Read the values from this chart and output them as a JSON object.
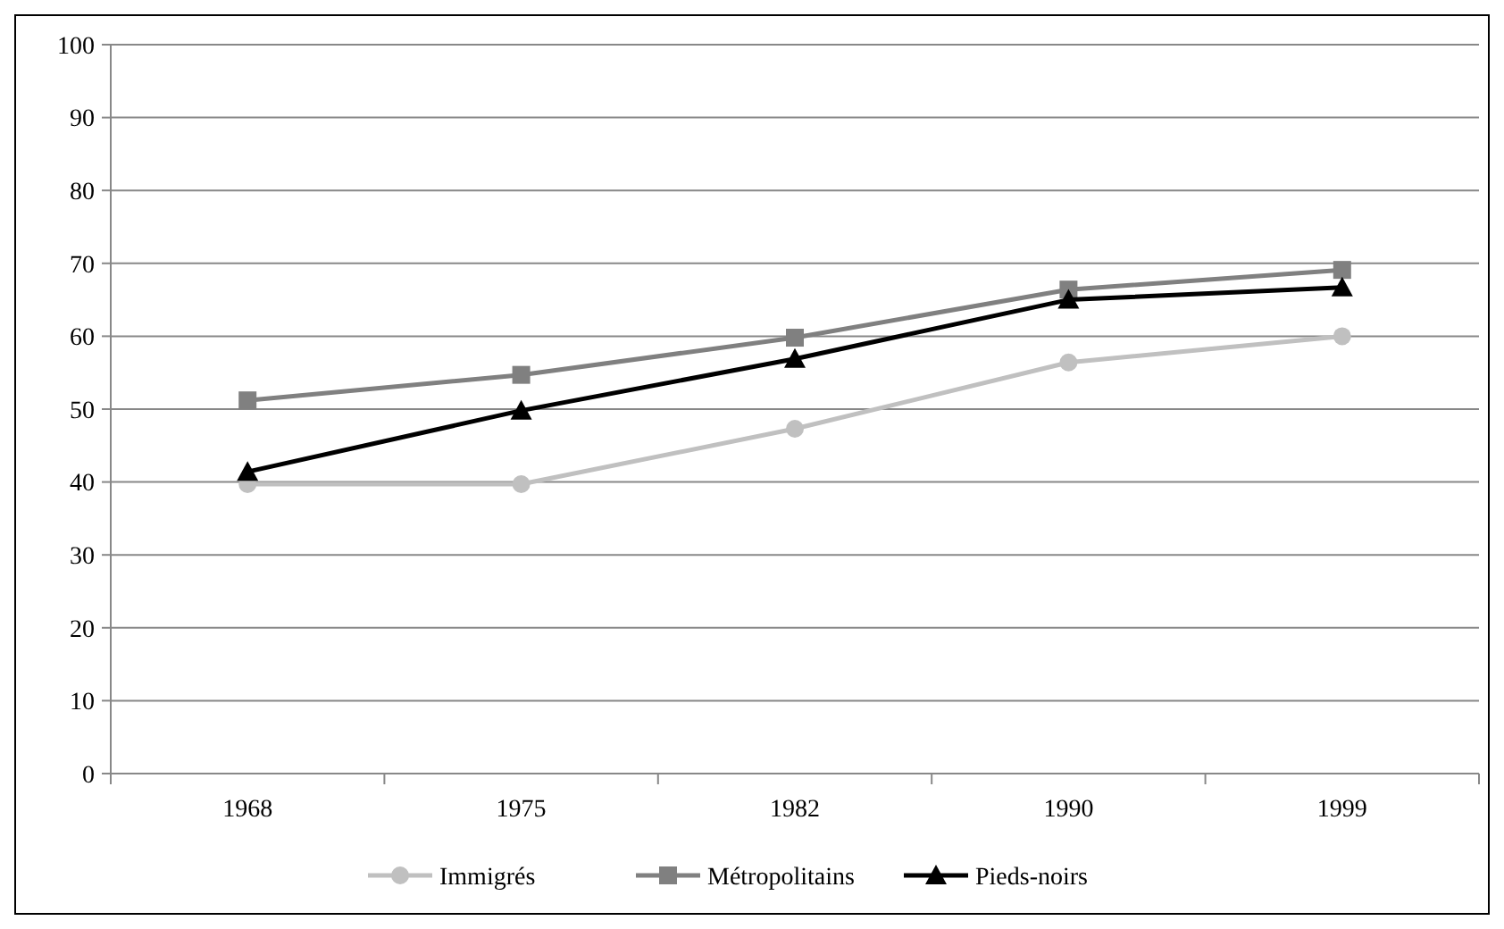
{
  "chart_data": {
    "type": "line",
    "categories": [
      "1968",
      "1975",
      "1982",
      "1990",
      "1999"
    ],
    "series": [
      {
        "name": "Immigrés",
        "color": "#c0c0c0",
        "marker": "circle",
        "values": [
          39.7,
          39.7,
          47.3,
          56.4,
          60.0
        ]
      },
      {
        "name": "Métropolitains",
        "color": "#808080",
        "marker": "square",
        "values": [
          51.2,
          54.7,
          59.8,
          66.4,
          69.1
        ]
      },
      {
        "name": "Pieds-noirs",
        "color": "#000000",
        "marker": "triangle",
        "values": [
          41.4,
          49.8,
          56.9,
          65.0,
          66.7
        ]
      }
    ],
    "ylim": [
      0,
      100
    ],
    "yticks": [
      0,
      10,
      20,
      30,
      40,
      50,
      60,
      70,
      80,
      90,
      100
    ],
    "grid": "y",
    "legend": "bottom",
    "line_style": "solid"
  }
}
